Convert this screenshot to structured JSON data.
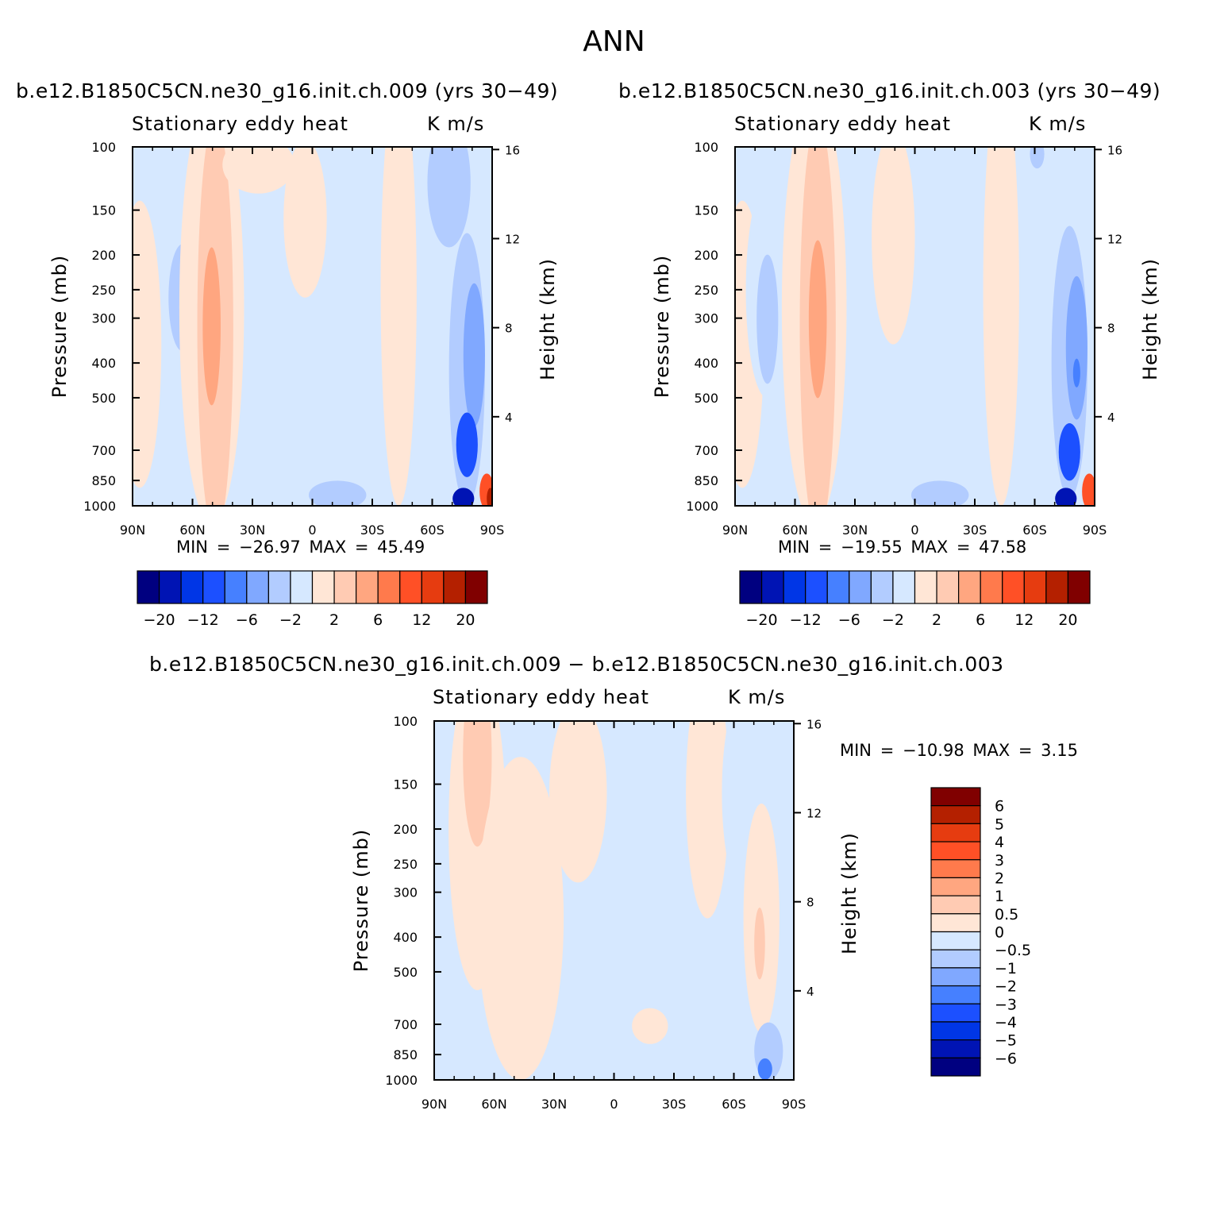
{
  "title": "ANN",
  "chart_data": [
    {
      "type": "heatmap",
      "case_title": "b.e12.B1850C5CN.ne30_g16.init.ch.009 (yrs 30−49)",
      "variable_label": "Stationary eddy heat",
      "units_label": "K m/s",
      "ylabel": "Pressure (mb)",
      "ylabel_right": "Height (km)",
      "x_ticks": [
        "90N",
        "60N",
        "30N",
        "0",
        "30S",
        "60S",
        "90S"
      ],
      "y_ticks": [
        "100",
        "150",
        "200",
        "250",
        "300",
        "400",
        "500",
        "700",
        "850",
        "1000"
      ],
      "y_right_ticks": [
        "16",
        "12",
        "8",
        "4"
      ],
      "stats_text": "MIN = −26.97   MAX =  45.49",
      "min": -26.97,
      "max": 45.49,
      "colorbar_labels": [
        "−20",
        "−12",
        "−6",
        "−2",
        "2",
        "6",
        "12",
        "20"
      ],
      "features": [
        {
          "lat": 52,
          "p": 400,
          "value": 10
        },
        {
          "lat": 76,
          "p": 400,
          "value": -2
        },
        {
          "lat": -80,
          "p": 700,
          "value": -12
        },
        {
          "lat": -85,
          "p": 1000,
          "value": 45.49
        }
      ]
    },
    {
      "type": "heatmap",
      "case_title": "b.e12.B1850C5CN.ne30_g16.init.ch.003 (yrs 30−49)",
      "variable_label": "Stationary eddy heat",
      "units_label": "K m/s",
      "ylabel": "Pressure (mb)",
      "ylabel_right": "Height (km)",
      "x_ticks": [
        "90N",
        "60N",
        "30N",
        "0",
        "30S",
        "60S",
        "90S"
      ],
      "y_ticks": [
        "100",
        "150",
        "200",
        "250",
        "300",
        "400",
        "500",
        "700",
        "850",
        "1000"
      ],
      "y_right_ticks": [
        "16",
        "12",
        "8",
        "4"
      ],
      "stats_text": "MIN = −19.55   MAX =  47.58",
      "min": -19.55,
      "max": 47.58,
      "colorbar_labels": [
        "−20",
        "−12",
        "−6",
        "−2",
        "2",
        "6",
        "12",
        "20"
      ],
      "features": [
        {
          "lat": 52,
          "p": 400,
          "value": 10
        },
        {
          "lat": 76,
          "p": 400,
          "value": -4
        },
        {
          "lat": -80,
          "p": 700,
          "value": -10
        },
        {
          "lat": -85,
          "p": 1000,
          "value": 47.58
        }
      ]
    },
    {
      "type": "heatmap",
      "case_title": "b.e12.B1850C5CN.ne30_g16.init.ch.009 − b.e12.B1850C5CN.ne30_g16.init.ch.003",
      "variable_label": "Stationary eddy heat",
      "units_label": "K m/s",
      "ylabel": "Pressure (mb)",
      "ylabel_right": "Height (km)",
      "x_ticks": [
        "90N",
        "60N",
        "30N",
        "0",
        "30S",
        "60S",
        "90S"
      ],
      "y_ticks": [
        "100",
        "150",
        "200",
        "250",
        "300",
        "400",
        "500",
        "700",
        "850",
        "1000"
      ],
      "y_right_ticks": [
        "16",
        "12",
        "8",
        "4"
      ],
      "stats_text": "MIN = −10.98   MAX =    3.15",
      "min": -10.98,
      "max": 3.15,
      "colorbar_labels": [
        "6",
        "5",
        "4",
        "3",
        "2",
        "1",
        "0.5",
        "0",
        "−0.5",
        "−1",
        "−2",
        "−3",
        "−4",
        "−5",
        "−6"
      ],
      "features": [
        {
          "lat": 70,
          "p": 150,
          "value": 1
        },
        {
          "lat": -70,
          "p": 400,
          "value": 2
        },
        {
          "lat": -70,
          "p": 150,
          "value": -1
        },
        {
          "lat": -80,
          "p": 900,
          "value": -5
        }
      ]
    }
  ],
  "colors": {
    "palette": [
      "#000080",
      "#0014b4",
      "#0036e6",
      "#1c50ff",
      "#4680ff",
      "#80a8ff",
      "#b2ccff",
      "#d6e8ff",
      "#ffe6d6",
      "#ffcbb3",
      "#ffa680",
      "#ff7a4c",
      "#ff5026",
      "#e63c10",
      "#b42000",
      "#800000"
    ]
  }
}
